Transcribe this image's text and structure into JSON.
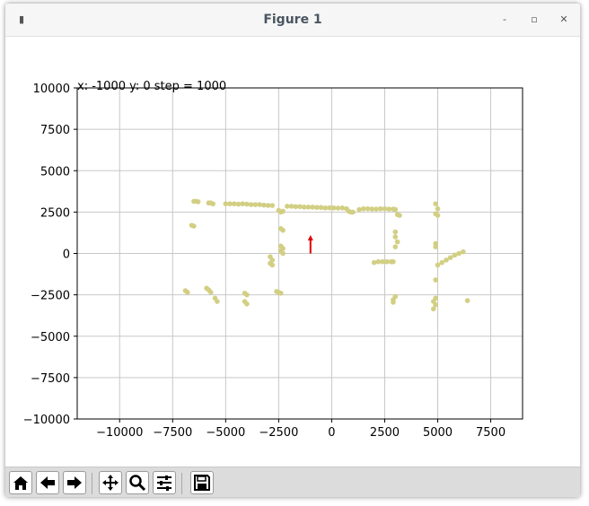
{
  "window": {
    "title": "Figure 1",
    "buttons": {
      "minimize": "-",
      "maximize": "▫",
      "close": "✕"
    }
  },
  "toolbar": {
    "tools": [
      "home-icon",
      "back-icon",
      "forward-icon",
      "pan-icon",
      "zoom-icon",
      "configure-subplots-icon",
      "save-icon"
    ]
  },
  "plot": {
    "coordinate_text": "x: -1000 y: 0 step = 1000"
  },
  "colors": {
    "points": "#d2cf84",
    "arrow": "#dd0000",
    "grid": "#c8c8c8"
  },
  "chart_data": {
    "type": "scatter",
    "xlim": [
      -12000,
      9000
    ],
    "ylim": [
      -10000,
      10000
    ],
    "xticks": [
      -10000,
      -7500,
      -5000,
      -2500,
      0,
      2500,
      5000,
      7500
    ],
    "xtick_labels": [
      "−10000",
      "−7500",
      "−5000",
      "−2500",
      "0",
      "2500",
      "5000",
      "7500"
    ],
    "yticks": [
      10000,
      7500,
      5000,
      2500,
      0,
      -2500,
      -5000,
      -7500,
      -10000
    ],
    "ytick_labels": [
      "10000",
      "7500",
      "5000",
      "2500",
      "0",
      "−2500",
      "−5000",
      "−7500",
      "−10000"
    ],
    "grid": true,
    "arrow": {
      "x": -1000,
      "y": 0,
      "dx": 0,
      "dy": 1000
    },
    "points": [
      [
        -6500,
        3150
      ],
      [
        -6400,
        3150
      ],
      [
        -6300,
        3120
      ],
      [
        -5800,
        3050
      ],
      [
        -5700,
        3050
      ],
      [
        -5600,
        3000
      ],
      [
        -5000,
        3000
      ],
      [
        -4800,
        3000
      ],
      [
        -4600,
        3000
      ],
      [
        -4400,
        2980
      ],
      [
        -4200,
        3000
      ],
      [
        -4000,
        2980
      ],
      [
        -3800,
        2950
      ],
      [
        -3600,
        2950
      ],
      [
        -3400,
        2950
      ],
      [
        -3200,
        2920
      ],
      [
        -3000,
        2900
      ],
      [
        -2800,
        2900
      ],
      [
        -2500,
        2600
      ],
      [
        -2400,
        2500
      ],
      [
        -2300,
        2550
      ],
      [
        -2100,
        2850
      ],
      [
        -1900,
        2850
      ],
      [
        -1700,
        2830
      ],
      [
        -1500,
        2830
      ],
      [
        -1300,
        2800
      ],
      [
        -1100,
        2800
      ],
      [
        -900,
        2800
      ],
      [
        -700,
        2780
      ],
      [
        -500,
        2780
      ],
      [
        -300,
        2750
      ],
      [
        -100,
        2760
      ],
      [
        100,
        2750
      ],
      [
        300,
        2740
      ],
      [
        500,
        2750
      ],
      [
        700,
        2700
      ],
      [
        800,
        2550
      ],
      [
        900,
        2500
      ],
      [
        1000,
        2500
      ],
      [
        1300,
        2650
      ],
      [
        1500,
        2700
      ],
      [
        1700,
        2700
      ],
      [
        1900,
        2680
      ],
      [
        2100,
        2680
      ],
      [
        2300,
        2700
      ],
      [
        2500,
        2700
      ],
      [
        2700,
        2680
      ],
      [
        2900,
        2680
      ],
      [
        3000,
        2650
      ],
      [
        3100,
        2350
      ],
      [
        3200,
        2300
      ],
      [
        -6600,
        1700
      ],
      [
        -6500,
        1650
      ],
      [
        -2400,
        1500
      ],
      [
        -2300,
        1400
      ],
      [
        -2400,
        450
      ],
      [
        -2300,
        300
      ],
      [
        -2400,
        150
      ],
      [
        -2300,
        0
      ],
      [
        -2900,
        -200
      ],
      [
        -2800,
        -400
      ],
      [
        -2900,
        -600
      ],
      [
        -2800,
        -700
      ],
      [
        -2600,
        -2300
      ],
      [
        -2500,
        -2350
      ],
      [
        -2400,
        -2400
      ],
      [
        -6900,
        -2250
      ],
      [
        -6800,
        -2350
      ],
      [
        -5900,
        -2100
      ],
      [
        -5800,
        -2200
      ],
      [
        -5700,
        -2350
      ],
      [
        -5500,
        -2700
      ],
      [
        -5400,
        -2900
      ],
      [
        -4100,
        -2400
      ],
      [
        -4000,
        -2500
      ],
      [
        -4100,
        -2900
      ],
      [
        -4000,
        -3050
      ],
      [
        3000,
        1300
      ],
      [
        3000,
        1000
      ],
      [
        3100,
        700
      ],
      [
        3000,
        400
      ],
      [
        2000,
        -550
      ],
      [
        2200,
        -500
      ],
      [
        2400,
        -500
      ],
      [
        2600,
        -500
      ],
      [
        2800,
        -500
      ],
      [
        2900,
        -500
      ],
      [
        3000,
        -2600
      ],
      [
        2900,
        -2800
      ],
      [
        2900,
        -2950
      ],
      [
        4900,
        3000
      ],
      [
        5000,
        2700
      ],
      [
        4900,
        2400
      ],
      [
        5000,
        2300
      ],
      [
        4900,
        600
      ],
      [
        4900,
        400
      ],
      [
        5000,
        -700
      ],
      [
        5200,
        -550
      ],
      [
        5400,
        -400
      ],
      [
        5600,
        -250
      ],
      [
        5800,
        -100
      ],
      [
        6000,
        0
      ],
      [
        6200,
        100
      ],
      [
        4900,
        -1600
      ],
      [
        4900,
        -2700
      ],
      [
        4800,
        -2900
      ],
      [
        4900,
        -3100
      ],
      [
        4800,
        -3350
      ],
      [
        6400,
        -2850
      ]
    ]
  }
}
